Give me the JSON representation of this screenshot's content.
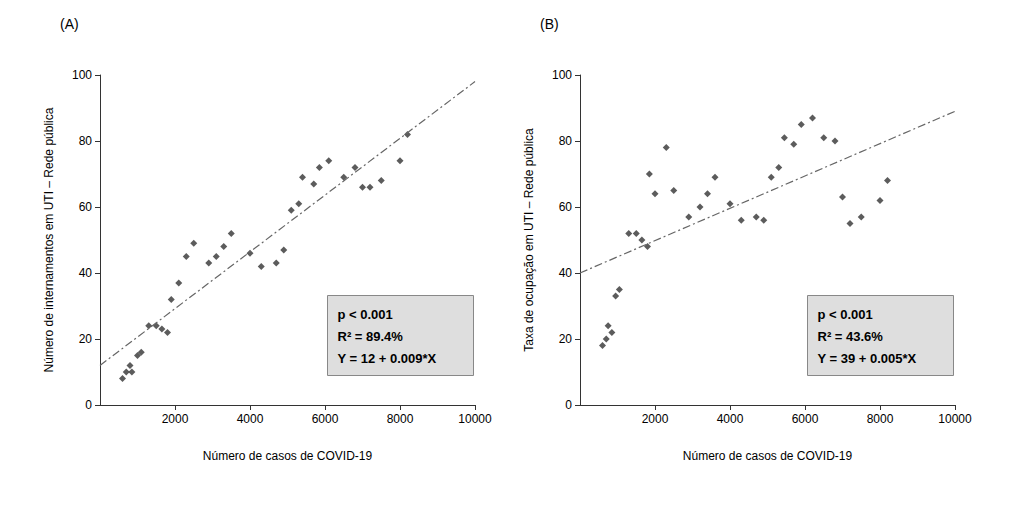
{
  "chart_data": [
    {
      "type": "scatter",
      "title": "(A)",
      "x_label": "Número de casos de COVID-19",
      "y_label": "Número de internamentos em UTI – Rede pública",
      "xlim": [
        0,
        10000
      ],
      "xticks": [
        2000,
        4000,
        6000,
        8000,
        10000
      ],
      "ylim": [
        0,
        100
      ],
      "yticks": [
        0,
        20,
        40,
        60,
        80,
        100
      ],
      "grid": false,
      "annotation": [
        "p < 0.001",
        "R² = 89.4%",
        "Y = 12 + 0.009*X"
      ],
      "series": [
        {
          "type": "scatter",
          "marker": "diamond",
          "color": "#333333",
          "x": [
            600,
            700,
            800,
            850,
            1000,
            1100,
            1300,
            1500,
            1650,
            1800,
            1900,
            2100,
            2300,
            2500,
            2900,
            3100,
            3300,
            3500,
            4000,
            4300,
            4700,
            4900,
            5100,
            5300,
            5400,
            5700,
            5850,
            6100,
            6500,
            6800,
            7000,
            7200,
            7500,
            8000,
            8200
          ],
          "values": [
            8,
            10,
            12,
            10,
            15,
            16,
            24,
            24,
            23,
            22,
            32,
            37,
            45,
            49,
            43,
            45,
            48,
            52,
            46,
            42,
            43,
            47,
            59,
            61,
            69,
            67,
            72,
            74,
            69,
            72,
            66,
            66,
            68,
            74,
            82
          ]
        },
        {
          "type": "line",
          "line_style": "dashdot",
          "color": "#666666",
          "x": [
            0,
            10000
          ],
          "values": [
            12,
            98
          ]
        }
      ]
    },
    {
      "type": "scatter",
      "title": "(B)",
      "x_label": "Número de casos de COVID-19",
      "y_label": "Taxa de ocupação em UTI – Rede pública",
      "xlim": [
        0,
        10000
      ],
      "xticks": [
        2000,
        4000,
        6000,
        8000,
        10000
      ],
      "ylim": [
        0,
        100
      ],
      "yticks": [
        0,
        20,
        40,
        60,
        80,
        100
      ],
      "grid": false,
      "annotation": [
        "p < 0.001",
        "R² = 43.6%",
        "Y = 39 + 0.005*X"
      ],
      "series": [
        {
          "type": "scatter",
          "marker": "diamond",
          "color": "#333333",
          "x": [
            600,
            700,
            750,
            850,
            950,
            1050,
            1300,
            1500,
            1650,
            1800,
            1850,
            2000,
            2300,
            2500,
            2900,
            3200,
            3400,
            3600,
            4000,
            4300,
            4700,
            4900,
            5100,
            5300,
            5450,
            5700,
            5900,
            6200,
            6500,
            6800,
            7000,
            7200,
            7500,
            8000,
            8200
          ],
          "values": [
            18,
            20,
            24,
            22,
            33,
            35,
            52,
            52,
            50,
            48,
            70,
            64,
            78,
            65,
            57,
            60,
            64,
            69,
            61,
            56,
            57,
            56,
            69,
            72,
            81,
            79,
            85,
            87,
            81,
            80,
            63,
            55,
            57,
            62,
            68
          ]
        },
        {
          "type": "line",
          "line_style": "dashdot",
          "color": "#666666",
          "x": [
            0,
            10000
          ],
          "values": [
            40,
            89
          ]
        }
      ]
    }
  ]
}
